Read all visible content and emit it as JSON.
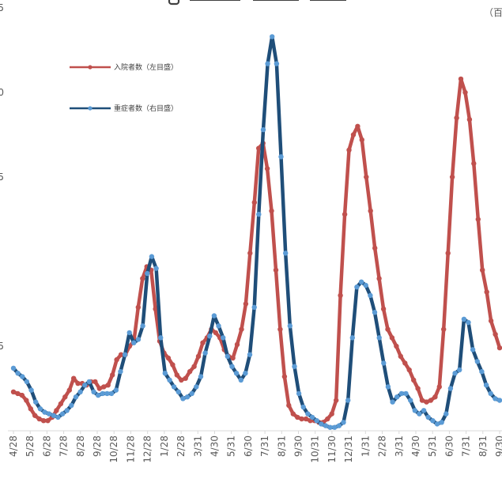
{
  "chart_data": {
    "type": "line",
    "title": "",
    "unit_label": "（百",
    "ylabel": "",
    "xlabel": "",
    "ylim": [
      0,
      2.5
    ],
    "y_ticks": [
      "0",
      ".5",
      "1.0",
      "1.5",
      "2.0",
      "2.5"
    ],
    "y_tick_labels": [
      "",
      "5",
      "",
      "5",
      "0",
      "5"
    ],
    "x_tick_labels": [
      "4/28",
      "5/28",
      "6/28",
      "7/28",
      "8/28",
      "9/28",
      "10/28",
      "11/28",
      "12/28",
      "1/28",
      "2/28",
      "3/31",
      "4/30",
      "5/31",
      "6/30",
      "7/31",
      "8/31",
      "9/30",
      "10/31",
      "11/30",
      "12/31",
      "1/31",
      "2/28",
      "3/31",
      "4/30",
      "5/31",
      "6/30",
      "7/31",
      "8/31",
      "9/30"
    ],
    "series": [
      {
        "name": "入院者数（左目盛）",
        "color": "#c0504d",
        "values": [
          0.23,
          0.22,
          0.21,
          0.18,
          0.13,
          0.09,
          0.07,
          0.06,
          0.06,
          0.08,
          0.12,
          0.16,
          0.2,
          0.24,
          0.31,
          0.28,
          0.28,
          0.27,
          0.29,
          0.29,
          0.25,
          0.26,
          0.27,
          0.33,
          0.42,
          0.45,
          0.45,
          0.5,
          0.53,
          0.73,
          0.9,
          0.97,
          0.95,
          0.72,
          0.53,
          0.46,
          0.43,
          0.39,
          0.33,
          0.3,
          0.31,
          0.35,
          0.38,
          0.44,
          0.52,
          0.55,
          0.6,
          0.58,
          0.55,
          0.48,
          0.44,
          0.43,
          0.51,
          0.6,
          0.75,
          1.05,
          1.35,
          1.67,
          1.7,
          1.55,
          1.3,
          0.95,
          0.6,
          0.32,
          0.15,
          0.1,
          0.08,
          0.07,
          0.07,
          0.06,
          0.06,
          0.05,
          0.05,
          0.07,
          0.1,
          0.18,
          0.8,
          1.28,
          1.66,
          1.75,
          1.8,
          1.72,
          1.5,
          1.3,
          1.08,
          0.9,
          0.72,
          0.6,
          0.55,
          0.5,
          0.44,
          0.4,
          0.36,
          0.3,
          0.25,
          0.18,
          0.17,
          0.18,
          0.2,
          0.26,
          0.6,
          1.05,
          1.5,
          1.85,
          2.08,
          2.0,
          1.84,
          1.58,
          1.25,
          0.95,
          0.82,
          0.65,
          0.57,
          0.49
        ]
      },
      {
        "name": "重症者数（右目盛）",
        "color": "#1f4e79",
        "values": [
          0.37,
          0.34,
          0.32,
          0.29,
          0.24,
          0.17,
          0.13,
          0.11,
          0.1,
          0.09,
          0.08,
          0.1,
          0.12,
          0.15,
          0.2,
          0.23,
          0.27,
          0.29,
          0.23,
          0.21,
          0.22,
          0.22,
          0.22,
          0.24,
          0.35,
          0.45,
          0.58,
          0.52,
          0.54,
          0.62,
          0.93,
          1.03,
          0.96,
          0.55,
          0.34,
          0.3,
          0.26,
          0.23,
          0.19,
          0.2,
          0.22,
          0.26,
          0.32,
          0.46,
          0.56,
          0.68,
          0.62,
          0.55,
          0.44,
          0.38,
          0.34,
          0.3,
          0.34,
          0.45,
          0.73,
          1.28,
          1.78,
          2.17,
          2.33,
          2.17,
          1.62,
          1.05,
          0.62,
          0.38,
          0.22,
          0.14,
          0.1,
          0.08,
          0.06,
          0.04,
          0.03,
          0.02,
          0.02,
          0.03,
          0.05,
          0.18,
          0.55,
          0.85,
          0.88,
          0.86,
          0.8,
          0.7,
          0.55,
          0.4,
          0.26,
          0.17,
          0.2,
          0.22,
          0.22,
          0.18,
          0.12,
          0.1,
          0.12,
          0.08,
          0.06,
          0.04,
          0.05,
          0.1,
          0.25,
          0.34,
          0.36,
          0.66,
          0.64,
          0.48,
          0.41,
          0.35,
          0.27,
          0.22,
          0.19,
          0.18
        ]
      }
    ],
    "legend": [
      {
        "label": "入院者数（左目盛）",
        "color": "#c0504d"
      },
      {
        "label": "重症者数（右目盛）",
        "color": "#1f4e79"
      }
    ]
  }
}
